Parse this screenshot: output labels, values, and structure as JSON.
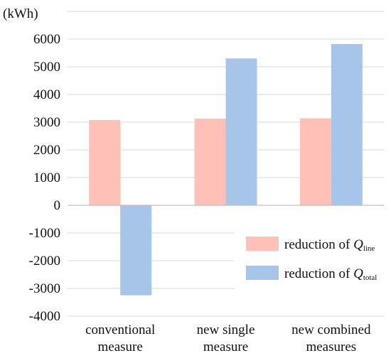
{
  "chart_data": {
    "type": "bar",
    "unit_label": "(kWh)",
    "categories": [
      [
        "conventional",
        "measure"
      ],
      [
        "new single",
        "measure"
      ],
      [
        "new combined",
        "measures"
      ]
    ],
    "series": [
      {
        "legend_prefix": "reduction of ",
        "legend_var": "Q",
        "legend_sub": "line",
        "color": "#FFC0B8",
        "values": [
          3080,
          3130,
          3140
        ]
      },
      {
        "legend_prefix": "reduction of ",
        "legend_var": "Q",
        "legend_sub": "total",
        "color": "#A7C5E8",
        "values": [
          -3250,
          5300,
          5820
        ]
      }
    ],
    "ylim": [
      -4000,
      7000
    ],
    "yticks": [
      -4000,
      -3000,
      -2000,
      -1000,
      0,
      1000,
      2000,
      3000,
      4000,
      5000,
      6000
    ],
    "grid": true,
    "legend_position": "bottom-right"
  }
}
